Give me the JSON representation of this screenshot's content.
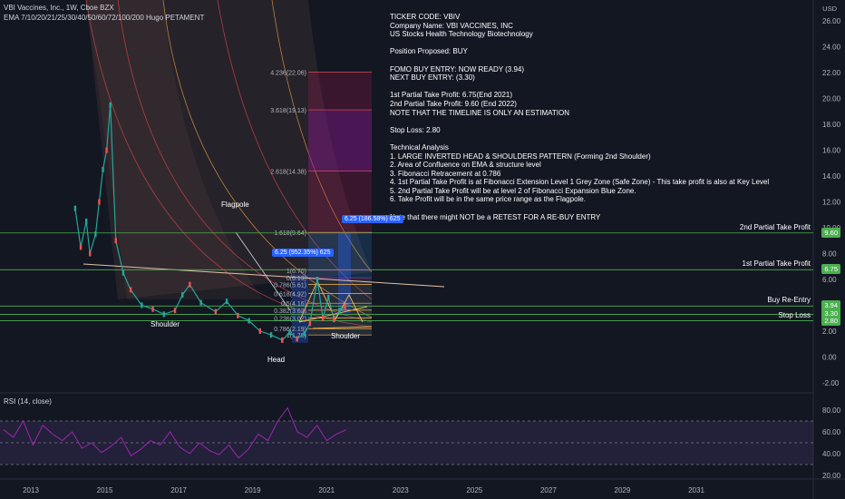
{
  "header": {
    "symbol_line": "VBI Vaccines, Inc., 1W, Cboe BZX",
    "ema_line": "EMA 7/10/20/21/25/30/40/50/60/72/100/200 Hugo PETAMENT",
    "currency": "USD"
  },
  "notes": [
    "TICKER CODE: VBIV",
    "Company Name: VBI VACCINES, INC",
    "US Stocks Health Technology Biotechnology",
    "",
    "Position Proposed: BUY",
    "",
    "FOMO BUY ENTRY: NOW READY (3.94)",
    "NEXT BUY ENTRY: (3.30)",
    "",
    "1st Partial Take Profit: 6.75(End 2021)",
    "2nd Partial Take Profit: 9.60 (End 2022)",
    "NOTE THAT THE TIMELINE IS ONLY AN ESTIMATION",
    "",
    "Stop Loss: 2.80",
    "",
    "Technical Analysis",
    "1. LARGE INVERTED HEAD & SHOULDERS PATTERN (Forming 2nd Shoulder)",
    "2. Area of Confluence on EMA & structure level",
    "3. Fibonacci Retracement at 0.786",
    "4. 1st Partial Take Profit is at Fibonacci Extension Level 1 Grey Zone (Safe Zone) - This take profit is also at Key Level",
    "5. 2nd Partial Take Profit will be at level 2 of Fibonacci Expansion Blue Zone.",
    "6. Take Profit will be in the same price range as the Flagpole.",
    "",
    "Note that there might NOT be a RETEST FOR A RE-BUY ENTRY"
  ],
  "annotations": {
    "flagpole": "Flagpole",
    "shoulder_left": "Shoulder",
    "shoulder_right": "Shoulder",
    "head": "Head",
    "box_upper": "6.25 (186.58%) 625",
    "box_lower": "6.25 (952.35%) 625"
  },
  "fib_labels": [
    {
      "text": "4.236(22.06)",
      "price": 22.06
    },
    {
      "text": "3.618(19.13)",
      "price": 19.13
    },
    {
      "text": "2.618(14.38)",
      "price": 14.38
    },
    {
      "text": "1.618(9.64)",
      "price": 9.64
    },
    {
      "text": "1(6.70)",
      "price": 6.7
    },
    {
      "text": "0(6.13)",
      "price": 6.13
    },
    {
      "text": "0.786(5.61)",
      "price": 5.61
    },
    {
      "text": "0.618(4.92)",
      "price": 4.92
    },
    {
      "text": "0.5(4.16)",
      "price": 4.16
    },
    {
      "text": "0.382(3.62)",
      "price": 3.62
    },
    {
      "text": "0.236(3.02)",
      "price": 3.02
    },
    {
      "text": "0.786(2.19)",
      "price": 2.19
    },
    {
      "text": "1(1.70)",
      "price": 1.7
    }
  ],
  "levels": [
    {
      "label": "2nd Partial Take Profit",
      "value": "9.60",
      "price": 9.6,
      "color": "#4caf50"
    },
    {
      "label": "1st Partial Take Profit",
      "value": "6.75",
      "price": 6.75,
      "color": "#4caf50"
    },
    {
      "label": "Buy Re-Entry",
      "value": "3.94",
      "price": 3.94,
      "color": "#4caf50"
    },
    {
      "label": "",
      "value": "3.30",
      "price": 3.3,
      "color": "#4caf50"
    },
    {
      "label": "Stop Loss",
      "value": "2.80",
      "price": 2.8,
      "color": "#4caf50"
    }
  ],
  "rsi": {
    "title": "RSI (14, close)",
    "ticks": [
      "80.00",
      "60.00",
      "40.00",
      "20.00"
    ]
  },
  "chart_data": {
    "type": "line",
    "title": "VBI Vaccines, Inc., 1W, Cboe BZX",
    "x_ticks": [
      "2013",
      "2015",
      "2017",
      "2019",
      "2021",
      "2023",
      "2025",
      "2027",
      "2029",
      "2031"
    ],
    "y_ticks": [
      "26.00",
      "24.00",
      "22.00",
      "20.00",
      "18.00",
      "16.00",
      "14.00",
      "12.00",
      "10.00",
      "8.00",
      "6.00",
      "4.00",
      "2.00",
      "0.00",
      "-2.00"
    ],
    "ylim": [
      -2.5,
      27
    ],
    "xlim": [
      2012.6,
      2032.8
    ],
    "series": [
      {
        "x": [
          2014.2,
          2014.35,
          2014.5,
          2014.6,
          2014.75,
          2014.85,
          2014.95,
          2015.05,
          2015.15,
          2015.3,
          2015.5,
          2015.7,
          2016.0,
          2016.3,
          2016.6,
          2016.9,
          2017.1,
          2017.3,
          2017.6,
          2018.0,
          2018.3,
          2018.6,
          2018.9,
          2019.2,
          2019.5,
          2019.8,
          2020.0,
          2020.2,
          2020.4,
          2020.55,
          2020.75,
          2020.9,
          2021.05,
          2021.2,
          2021.35,
          2021.5
        ],
        "values": [
          11.5,
          8.5,
          10.5,
          8.0,
          9.5,
          12.0,
          14.5,
          16.0,
          19.5,
          9.0,
          6.5,
          5.2,
          4.0,
          3.7,
          3.3,
          3.6,
          4.8,
          5.6,
          4.2,
          3.5,
          4.3,
          3.2,
          2.8,
          2.0,
          1.7,
          1.3,
          1.9,
          1.4,
          1.8,
          2.6,
          6.0,
          3.0,
          4.6,
          2.9,
          3.6,
          3.9
        ]
      }
    ]
  }
}
